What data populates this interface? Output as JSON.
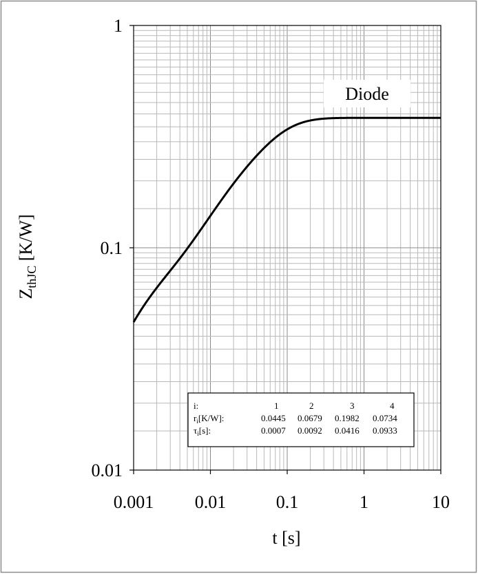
{
  "chart_data": {
    "type": "line",
    "title": "",
    "xlabel": "t [s]",
    "ylabel_main": "Z",
    "ylabel_sub": "thJC",
    "ylabel_unit": " [K/W]",
    "x_scale": "log",
    "y_scale": "log",
    "xlim": [
      0.001,
      10
    ],
    "ylim": [
      0.01,
      1
    ],
    "grid": true,
    "x_ticks": [
      {
        "value": 0.001,
        "label": "0.001"
      },
      {
        "value": 0.01,
        "label": "0.01"
      },
      {
        "value": 0.1,
        "label": "0.1"
      },
      {
        "value": 1,
        "label": "1"
      },
      {
        "value": 10,
        "label": "10"
      }
    ],
    "y_ticks": [
      {
        "value": 0.01,
        "label": "0.01"
      },
      {
        "value": 0.1,
        "label": "0.1"
      },
      {
        "value": 1,
        "label": "1"
      }
    ],
    "series": [
      {
        "label": "Diode",
        "color": "#000000",
        "foster_model": {
          "r": [
            0.0445,
            0.0679,
            0.1982,
            0.0734
          ],
          "tau": [
            0.0007,
            0.0092,
            0.0416,
            0.0933
          ]
        }
      }
    ],
    "table": {
      "header": [
        "i:",
        "1",
        "2",
        "3",
        "4"
      ],
      "rows": [
        {
          "label_main": "r",
          "label_sub": "i",
          "label_rest": "[K/W]:",
          "values": [
            "0.0445",
            "0.0679",
            "0.1982",
            "0.0734"
          ]
        },
        {
          "label_main": "τ",
          "label_sub": "i",
          "label_rest": "[s]:",
          "values": [
            "0.0007",
            "0.0092",
            "0.0416",
            "0.0933"
          ]
        }
      ]
    }
  }
}
